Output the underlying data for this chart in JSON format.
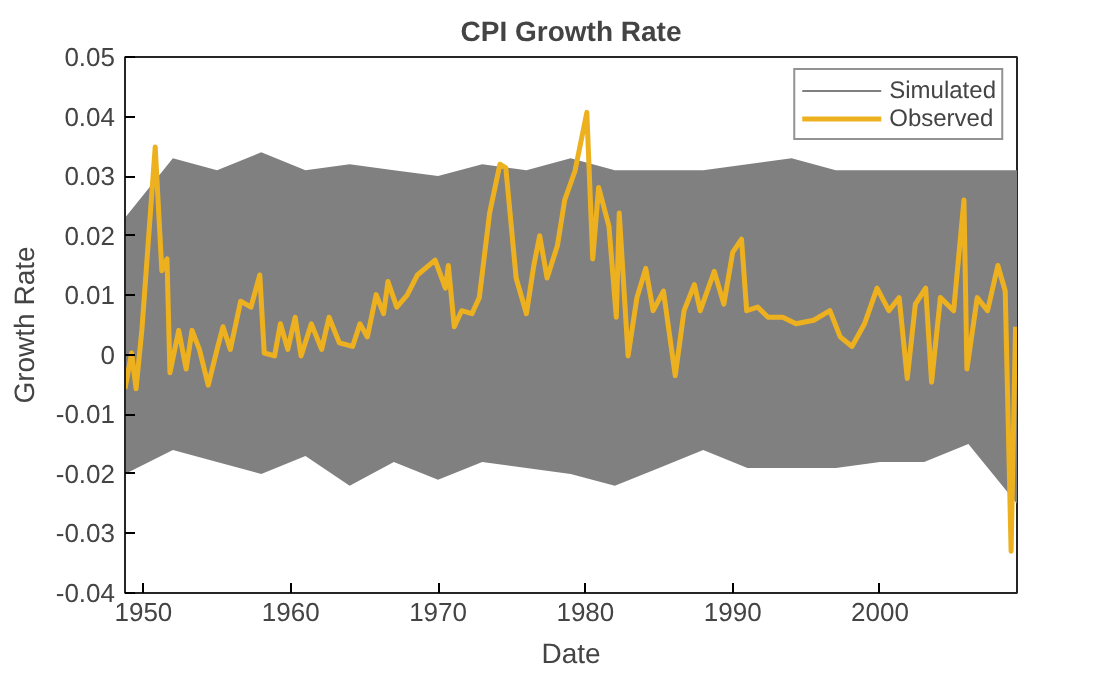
{
  "chart_data": {
    "type": "line",
    "title": "CPI Growth Rate",
    "xlabel": "Date",
    "ylabel": "Growth Rate",
    "xlim": [
      1948.75,
      2009.3
    ],
    "xticks": [
      1950,
      1960,
      1970,
      1980,
      1990,
      2000
    ],
    "ylim": [
      -0.04,
      0.05
    ],
    "yticks": [
      -0.04,
      -0.03,
      -0.02,
      -0.01,
      0,
      0.01,
      0.02,
      0.03,
      0.04,
      0.05
    ],
    "grid": false,
    "legend": "top right",
    "marker": "none",
    "line_style": "solid",
    "series": [
      {
        "name": "Simulated",
        "color": "#808080",
        "x": [
          1948.75,
          1952,
          1955,
          1958,
          1961,
          1964,
          1967,
          1970,
          1973,
          1976,
          1979,
          1982,
          1985,
          1988,
          1991,
          1994,
          1997,
          2000,
          2003,
          2006,
          2009.3
        ],
        "values": [
          null,
          null,
          null,
          null,
          null,
          null,
          null,
          null,
          null,
          null,
          null,
          null,
          null,
          null,
          null,
          null,
          null,
          null,
          null,
          null,
          null
        ],
        "upper": [
          0.023,
          0.033,
          0.031,
          0.034,
          0.031,
          0.032,
          0.031,
          0.03,
          0.032,
          0.031,
          0.033,
          0.031,
          0.031,
          0.031,
          0.032,
          0.033,
          0.031,
          0.031,
          0.031,
          0.031,
          0.031
        ],
        "lower": [
          -0.02,
          -0.016,
          -0.018,
          -0.02,
          -0.017,
          -0.022,
          -0.018,
          -0.021,
          -0.018,
          -0.019,
          -0.02,
          -0.022,
          -0.019,
          -0.016,
          -0.019,
          -0.019,
          -0.019,
          -0.018,
          -0.018,
          -0.015,
          -0.025
        ]
      },
      {
        "name": "Observed",
        "color": "#edb120",
        "x": [
          1948.75,
          1949.2,
          1949.5,
          1949.9,
          1950.8,
          1951.25,
          1951.6,
          1951.8,
          1952.4,
          1952.9,
          1953.3,
          1953.8,
          1954.4,
          1955.0,
          1955.4,
          1955.9,
          1956.6,
          1957.3,
          1957.9,
          1958.2,
          1958.9,
          1959.3,
          1959.8,
          1960.3,
          1960.7,
          1961.4,
          1962.1,
          1962.6,
          1963.3,
          1964.2,
          1964.7,
          1965.2,
          1965.8,
          1966.3,
          1966.6,
          1967.2,
          1967.9,
          1968.6,
          1969.8,
          1970.5,
          1970.7,
          1971.1,
          1971.6,
          1972.3,
          1972.8,
          1973.5,
          1974.2,
          1974.6,
          1975.3,
          1976.0,
          1976.5,
          1976.9,
          1977.4,
          1978.1,
          1978.6,
          1979.3,
          1980.1,
          1980.5,
          1980.9,
          1981.6,
          1982.1,
          1982.3,
          1982.9,
          1983.5,
          1984.1,
          1984.6,
          1985.3,
          1986.1,
          1986.7,
          1987.4,
          1987.8,
          1988.75,
          1989.4,
          1990.0,
          1990.6,
          1990.95,
          1991.7,
          1992.4,
          1993.4,
          1994.3,
          1995.5,
          1996.6,
          1997.3,
          1998.1,
          1998.95,
          1999.8,
          2000.6,
          2001.3,
          2001.85,
          2002.4,
          2003.1,
          2003.5,
          2004.1,
          2005.0,
          2005.7,
          2005.9,
          2006.6,
          2007.3,
          2008.0,
          2008.5,
          2008.9,
          2009.2
        ],
        "values": [
          -0.0057,
          0.0003,
          -0.0057,
          0.0043,
          0.0349,
          0.0141,
          0.0161,
          -0.003,
          0.0041,
          -0.0024,
          0.0041,
          0.0009,
          -0.0051,
          0.0009,
          0.0047,
          0.0009,
          0.009,
          0.008,
          0.0134,
          0.0003,
          -0.0002,
          0.0052,
          0.0009,
          0.0063,
          -0.0002,
          0.0052,
          0.0009,
          0.0063,
          0.002,
          0.0014,
          0.0052,
          0.003,
          0.0101,
          0.0069,
          0.0123,
          0.008,
          0.01,
          0.0134,
          0.0159,
          0.0112,
          0.015,
          0.0047,
          0.0074,
          0.0069,
          0.0096,
          0.0238,
          0.032,
          0.0314,
          0.0129,
          0.0069,
          0.015,
          0.02,
          0.0129,
          0.0183,
          0.026,
          0.0309,
          0.0407,
          0.0161,
          0.0281,
          0.0216,
          0.0063,
          0.0238,
          -0.0002,
          0.0096,
          0.0145,
          0.0074,
          0.0107,
          -0.0035,
          0.0074,
          0.0118,
          0.0074,
          0.014,
          0.0085,
          0.0172,
          0.0194,
          0.0074,
          0.008,
          0.0063,
          0.0063,
          0.0052,
          0.0058,
          0.0074,
          0.003,
          0.0014,
          0.0052,
          0.0112,
          0.0074,
          0.0096,
          -0.004,
          0.0085,
          0.0112,
          -0.0046,
          0.0096,
          0.0074,
          0.026,
          -0.0024,
          0.0096,
          0.0074,
          0.015,
          0.0107,
          -0.033,
          0.0047
        ]
      }
    ]
  }
}
